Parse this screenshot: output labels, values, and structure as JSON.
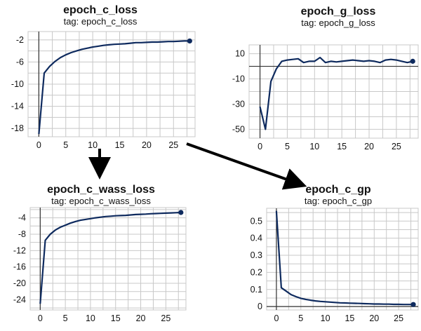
{
  "chart_data": [
    {
      "type": "line",
      "title": "epoch_c_loss",
      "subtitle": "tag: epoch_c_loss",
      "x_ticks": [
        0,
        5,
        10,
        15,
        20,
        25
      ],
      "y_ticks": [
        -2,
        -6,
        -10,
        -14,
        -18
      ],
      "xlim": [
        -2,
        29
      ],
      "ylim": [
        -19.5,
        -0.5
      ],
      "grid": true,
      "series": [
        {
          "x": [
            0,
            1,
            2,
            3,
            4,
            5,
            6,
            7,
            8,
            9,
            10,
            11,
            12,
            13,
            14,
            15,
            16,
            17,
            18,
            19,
            20,
            21,
            22,
            23,
            24,
            25,
            26,
            27,
            28
          ],
          "values": [
            -19,
            -8,
            -6.8,
            -5.9,
            -5.2,
            -4.7,
            -4.3,
            -4.0,
            -3.7,
            -3.5,
            -3.3,
            -3.15,
            -3.0,
            -2.9,
            -2.8,
            -2.75,
            -2.7,
            -2.6,
            -2.5,
            -2.5,
            -2.45,
            -2.4,
            -2.4,
            -2.35,
            -2.3,
            -2.3,
            -2.25,
            -2.2,
            -2.2
          ]
        }
      ]
    },
    {
      "type": "line",
      "title": "epoch_g_loss",
      "subtitle": "tag: epoch_g_loss",
      "x_ticks": [
        0,
        5,
        10,
        15,
        20,
        25
      ],
      "y_ticks": [
        10,
        -10,
        -30,
        -50
      ],
      "xlim": [
        -2,
        29
      ],
      "ylim": [
        -57,
        17
      ],
      "grid": true,
      "series": [
        {
          "x": [
            0,
            1,
            2,
            3,
            4,
            5,
            6,
            7,
            8,
            9,
            10,
            11,
            12,
            13,
            14,
            15,
            16,
            17,
            18,
            19,
            20,
            21,
            22,
            23,
            24,
            25,
            26,
            27,
            28
          ],
          "values": [
            -32,
            -50,
            -12,
            -2,
            4,
            5,
            5.5,
            6,
            3,
            4,
            4,
            7,
            3,
            4,
            3.5,
            4,
            4.5,
            5,
            4.5,
            4,
            4.5,
            4,
            3,
            5,
            5.5,
            5,
            4,
            3,
            4
          ]
        }
      ]
    },
    {
      "type": "line",
      "title": "epoch_c_wass_loss",
      "subtitle": "tag: epoch_c_wass_loss",
      "x_ticks": [
        0,
        5,
        10,
        15,
        20,
        25
      ],
      "y_ticks": [
        -4,
        -8,
        -12,
        -16,
        -20,
        -24
      ],
      "xlim": [
        -2,
        29
      ],
      "ylim": [
        -26.5,
        -1.5
      ],
      "grid": true,
      "series": [
        {
          "x": [
            0,
            1,
            2,
            3,
            4,
            5,
            6,
            7,
            8,
            9,
            10,
            11,
            12,
            13,
            14,
            15,
            16,
            17,
            18,
            19,
            20,
            21,
            22,
            23,
            24,
            25,
            26,
            27,
            28
          ],
          "values": [
            -25,
            -9.5,
            -8,
            -7,
            -6.3,
            -5.8,
            -5.3,
            -4.9,
            -4.6,
            -4.4,
            -4.2,
            -4.0,
            -3.85,
            -3.7,
            -3.6,
            -3.5,
            -3.45,
            -3.4,
            -3.3,
            -3.2,
            -3.15,
            -3.1,
            -3.0,
            -2.95,
            -2.9,
            -2.85,
            -2.8,
            -2.75,
            -2.7
          ]
        }
      ]
    },
    {
      "type": "line",
      "title": "epoch_c_gp",
      "subtitle": "tag: epoch_c_gp",
      "x_ticks": [
        0,
        5,
        10,
        15,
        20,
        25
      ],
      "y_ticks": [
        0.5,
        0.4,
        0.3,
        0.2,
        0.1,
        0
      ],
      "xlim": [
        -2,
        29
      ],
      "ylim": [
        -0.02,
        0.575
      ],
      "grid": true,
      "series": [
        {
          "x": [
            0,
            1,
            2,
            3,
            4,
            5,
            6,
            7,
            8,
            9,
            10,
            11,
            12,
            13,
            14,
            15,
            16,
            17,
            18,
            19,
            20,
            21,
            22,
            23,
            24,
            25,
            26,
            27,
            28
          ],
          "values": [
            0.56,
            0.11,
            0.09,
            0.07,
            0.058,
            0.048,
            0.042,
            0.037,
            0.033,
            0.03,
            0.028,
            0.026,
            0.024,
            0.022,
            0.021,
            0.02,
            0.019,
            0.018,
            0.017,
            0.016,
            0.015,
            0.015,
            0.014,
            0.014,
            0.013,
            0.013,
            0.012,
            0.012,
            0.012
          ]
        }
      ]
    }
  ],
  "arrows": [
    "down-arrow",
    "diagonal-arrow"
  ],
  "colors": {
    "series": "#0e2a5e",
    "grid": "#c8c8c8",
    "arrow": "#000000"
  }
}
